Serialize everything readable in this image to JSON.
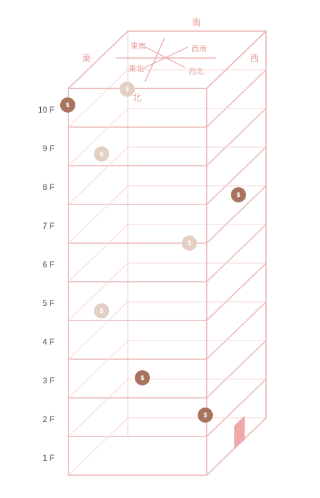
{
  "colors": {
    "building_line": "#ecb9b9",
    "building_line_light": "#f6dede",
    "direction_text": "#e8a0a0",
    "coin_dark": "#a8735e",
    "coin_light": "#e4cfc4",
    "door": "#f0a8aa",
    "floor_text": "#444444"
  },
  "directions": {
    "south": "南",
    "east": "東",
    "west": "西",
    "north": "北",
    "southeast": "東南",
    "southwest": "西南",
    "northeast": "東北",
    "northwest": "西北"
  },
  "floors": [
    {
      "label": "10 F"
    },
    {
      "label": "9 F"
    },
    {
      "label": "8 F"
    },
    {
      "label": "7 F"
    },
    {
      "label": "6 F"
    },
    {
      "label": "5 F"
    },
    {
      "label": "4 F"
    },
    {
      "label": "3 F"
    },
    {
      "label": "2 F"
    },
    {
      "label": "1 F"
    }
  ],
  "coin_symbol": "$",
  "coins": [
    {
      "floor": "10 F",
      "tone": "dark"
    },
    {
      "floor": "10 F",
      "tone": "light"
    },
    {
      "floor": "9 F",
      "tone": "light"
    },
    {
      "floor": "8 F",
      "tone": "dark"
    },
    {
      "floor": "7 F",
      "tone": "light"
    },
    {
      "floor": "5 F",
      "tone": "light"
    },
    {
      "floor": "3 F",
      "tone": "dark"
    },
    {
      "floor": "2 F",
      "tone": "dark"
    }
  ],
  "icons": {
    "compass": "compass-rose-icon",
    "coin": "dollar-coin-icon",
    "door": "door-icon"
  }
}
